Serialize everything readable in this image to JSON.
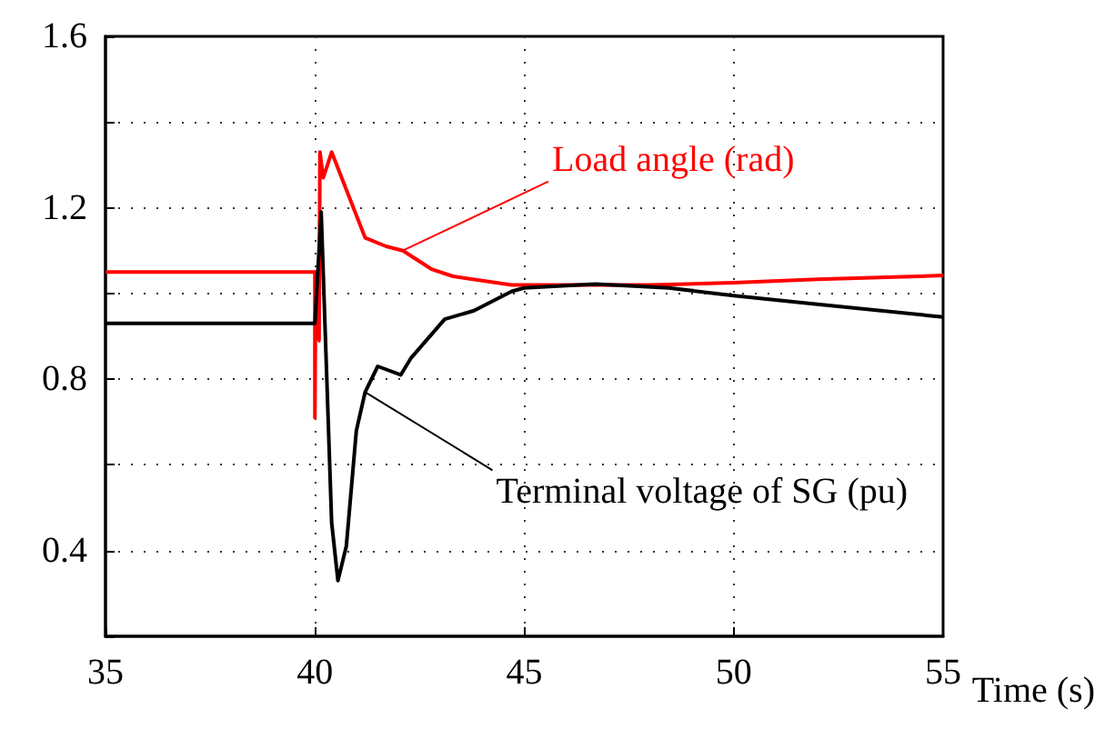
{
  "chart_data": {
    "type": "line",
    "xlabel": "Time (s)",
    "xlim": [
      35,
      55
    ],
    "xticks": [
      35,
      40,
      45,
      50,
      55
    ],
    "ylim": [
      0.2,
      1.6
    ],
    "yticks": [
      {
        "value": 0.2,
        "label": null
      },
      0.4,
      {
        "value": 0.6,
        "label": null
      },
      0.8,
      {
        "value": 1.0,
        "label": null
      },
      1.2,
      {
        "value": 1.4,
        "label": null
      },
      1.6
    ],
    "grid": true,
    "marker": "none",
    "line_style": "solid",
    "series": [
      {
        "color": "#ff0000",
        "x": [
          35,
          40,
          40,
          40.02,
          40.1,
          40.12,
          40.2,
          40.4,
          40.8,
          41.2,
          41.7,
          42.1,
          42.8,
          43.3,
          44.7,
          46,
          48,
          50,
          52,
          55
        ],
        "values": [
          1.05,
          1.05,
          0.71,
          1.05,
          0.89,
          1.33,
          1.27,
          1.33,
          1.23,
          1.13,
          1.11,
          1.1,
          1.056,
          1.04,
          1.02,
          1.02,
          1.02,
          1.025,
          1.033,
          1.042
        ]
      },
      {
        "color": "#000000",
        "x": [
          35,
          40,
          40.15,
          40.4,
          40.55,
          40.75,
          40.99,
          41.2,
          41.5,
          42.05,
          42.3,
          43.1,
          43.8,
          44.7,
          45,
          46.7,
          48.45,
          50,
          52,
          55
        ],
        "values": [
          0.93,
          0.93,
          1.19,
          0.465,
          0.33,
          0.41,
          0.68,
          0.77,
          0.83,
          0.81,
          0.85,
          0.94,
          0.96,
          1.005,
          1.013,
          1.022,
          1.013,
          0.995,
          0.975,
          0.945
        ]
      }
    ],
    "annotations": [
      {
        "text": "Load angle (rad)",
        "x": 42.1,
        "y": 1.1
      },
      {
        "text": "Terminal voltage of SG (pu)",
        "x": 41.2,
        "y": 0.77
      }
    ]
  }
}
